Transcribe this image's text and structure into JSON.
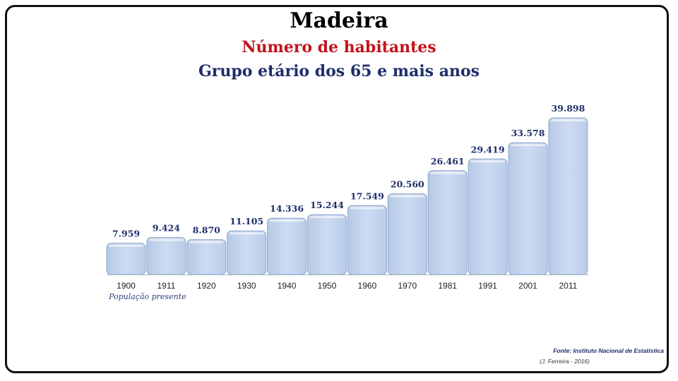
{
  "header": {
    "title": "Madeira",
    "subtitle": "Número de habitantes",
    "subtitle2": "Grupo etário dos 65 e mais anos"
  },
  "note": "População presente",
  "footer": {
    "source": "Fonte: Instituto Nacional de Estatística",
    "author": "(J. Ferreira - 2016)"
  },
  "colors": {
    "bar_fill": "#c5d5ee",
    "bar_stroke": "#8fa7c8",
    "value_label": "#1f2d6b",
    "subtitle_red": "#c0141c",
    "subtitle_navy": "#1f2d6b"
  },
  "chart_data": {
    "type": "bar",
    "categories": [
      "1900",
      "1911",
      "1920",
      "1930",
      "1940",
      "1950",
      "1960",
      "1970",
      "1981",
      "1991",
      "2001",
      "2011"
    ],
    "values": [
      7959,
      9424,
      8870,
      11105,
      14336,
      15244,
      17549,
      20560,
      26461,
      29419,
      33578,
      39898
    ],
    "data_labels": [
      "7.959",
      "9.424",
      "8.870",
      "11.105",
      "14.336",
      "15.244",
      "17.549",
      "20.560",
      "26.461",
      "29.419",
      "33.578",
      "39.898"
    ],
    "title": "Madeira",
    "xlabel": "",
    "ylabel": "",
    "grid": false,
    "legend": "none"
  }
}
